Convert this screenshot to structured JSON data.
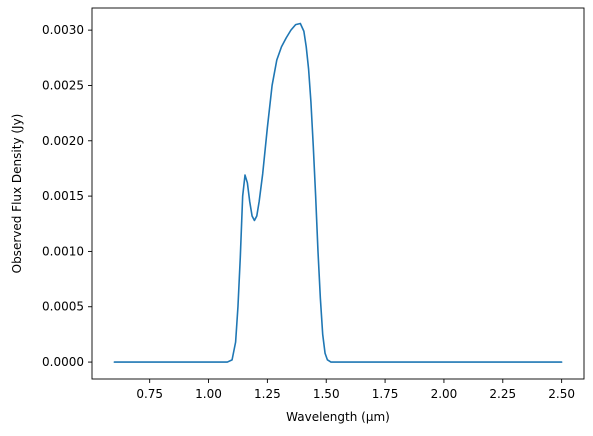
{
  "chart_data": {
    "type": "line",
    "title": "",
    "xlabel": "Wavelength (μm)",
    "ylabel": "Observed Flux Density (Jy)",
    "xlim": [
      0.505,
      2.595
    ],
    "ylim": [
      -0.000153,
      0.0032
    ],
    "grid": false,
    "legend": "none",
    "x_ticks": [
      {
        "value": 0.75,
        "label": "0.75"
      },
      {
        "value": 1.0,
        "label": "1.00"
      },
      {
        "value": 1.25,
        "label": "1.25"
      },
      {
        "value": 1.5,
        "label": "1.50"
      },
      {
        "value": 1.75,
        "label": "1.75"
      },
      {
        "value": 2.0,
        "label": "2.00"
      },
      {
        "value": 2.25,
        "label": "2.25"
      },
      {
        "value": 2.5,
        "label": "2.50"
      }
    ],
    "y_ticks": [
      {
        "value": 0.0,
        "label": "0.0000"
      },
      {
        "value": 0.0005,
        "label": "0.0005"
      },
      {
        "value": 0.001,
        "label": "0.0010"
      },
      {
        "value": 0.0015,
        "label": "0.0015"
      },
      {
        "value": 0.002,
        "label": "0.0020"
      },
      {
        "value": 0.0025,
        "label": "0.0025"
      },
      {
        "value": 0.003,
        "label": "0.0030"
      }
    ],
    "series": [
      {
        "color": "#1f77b4",
        "x": [
          0.6,
          0.8,
          1.0,
          1.08,
          1.1,
          1.115,
          1.125,
          1.135,
          1.145,
          1.155,
          1.165,
          1.175,
          1.185,
          1.195,
          1.205,
          1.215,
          1.23,
          1.25,
          1.27,
          1.29,
          1.31,
          1.33,
          1.35,
          1.37,
          1.39,
          1.405,
          1.415,
          1.425,
          1.435,
          1.445,
          1.455,
          1.465,
          1.475,
          1.485,
          1.495,
          1.505,
          1.52,
          1.6,
          1.8,
          2.0,
          2.2,
          2.4,
          2.5
        ],
        "y": [
          0.0,
          0.0,
          0.0,
          0.0,
          2e-05,
          0.00018,
          0.0005,
          0.00095,
          0.0015,
          0.00169,
          0.00162,
          0.00145,
          0.00132,
          0.00128,
          0.00132,
          0.00145,
          0.0017,
          0.00212,
          0.0025,
          0.00273,
          0.00285,
          0.00293,
          0.003,
          0.00305,
          0.00306,
          0.00299,
          0.00285,
          0.00265,
          0.00235,
          0.00195,
          0.0015,
          0.001,
          0.00058,
          0.00025,
          8e-05,
          2e-05,
          0.0,
          0.0,
          0.0,
          0.0,
          0.0,
          0.0,
          0.0
        ]
      }
    ]
  }
}
